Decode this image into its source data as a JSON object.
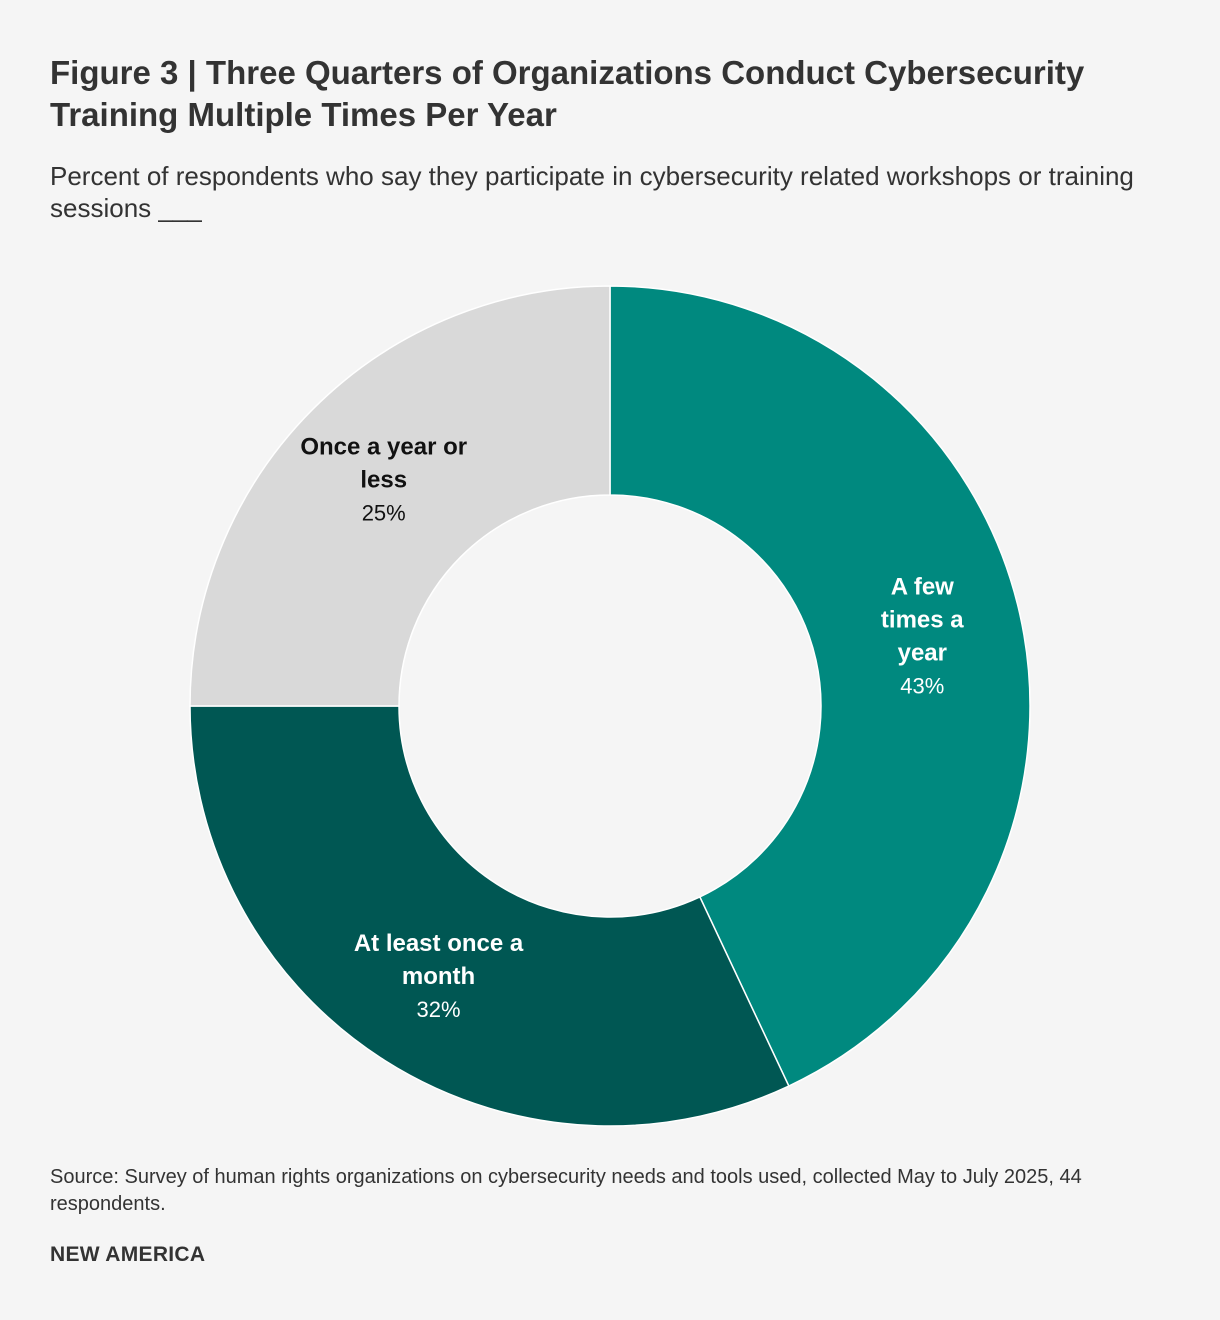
{
  "header": {
    "title": "Figure 3 | Three Quarters of Organizations Conduct Cybersecurity Training Multiple Times Per Year",
    "subtitle": "Percent of respondents who say they participate in cybersecurity related workshops or training sessions ___"
  },
  "footer": {
    "source": "Source: Survey of human rights organizations on cybersecurity needs and tools used, collected May to July 2025, 44 respondents.",
    "brand": "NEW AMERICA"
  },
  "chart_data": {
    "type": "pie",
    "title": "Figure 3 | Three Quarters of Organizations Conduct Cybersecurity Training Multiple Times Per Year",
    "slices": [
      {
        "label": "A few times a year",
        "label_lines": [
          "A few",
          "times a",
          "year"
        ],
        "value": 43,
        "value_label": "43%",
        "color": "#00897f",
        "text_color": "#ffffff"
      },
      {
        "label": "At least once a month",
        "label_lines": [
          "At least once a",
          "month"
        ],
        "value": 32,
        "value_label": "32%",
        "color": "#005753",
        "text_color": "#ffffff"
      },
      {
        "label": "Once a year or less",
        "label_lines": [
          "Once a year or",
          "less"
        ],
        "value": 25,
        "value_label": "25%",
        "color": "#d9d9d9",
        "text_color": "#111111"
      }
    ],
    "start": "top, clockwise",
    "donut": true
  }
}
